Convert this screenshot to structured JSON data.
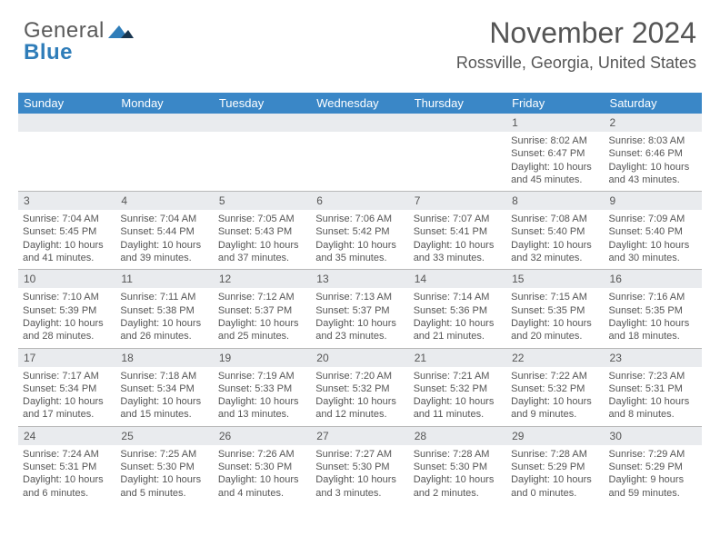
{
  "logo": {
    "general": "General",
    "blue": "Blue"
  },
  "header": {
    "month_title": "November 2024",
    "location": "Rossville, Georgia, United States"
  },
  "colors": {
    "brand_blue": "#2f7db9",
    "header_bg": "#3a87c7",
    "daynum_bg": "#e9ebee",
    "divider": "#b8b8b8",
    "text": "#555555"
  },
  "days_of_week": [
    "Sunday",
    "Monday",
    "Tuesday",
    "Wednesday",
    "Thursday",
    "Friday",
    "Saturday"
  ],
  "weeks": [
    [
      {
        "n": "",
        "lines": []
      },
      {
        "n": "",
        "lines": []
      },
      {
        "n": "",
        "lines": []
      },
      {
        "n": "",
        "lines": []
      },
      {
        "n": "",
        "lines": []
      },
      {
        "n": "1",
        "lines": [
          "Sunrise: 8:02 AM",
          "Sunset: 6:47 PM",
          "Daylight: 10 hours and 45 minutes."
        ]
      },
      {
        "n": "2",
        "lines": [
          "Sunrise: 8:03 AM",
          "Sunset: 6:46 PM",
          "Daylight: 10 hours and 43 minutes."
        ]
      }
    ],
    [
      {
        "n": "3",
        "lines": [
          "Sunrise: 7:04 AM",
          "Sunset: 5:45 PM",
          "Daylight: 10 hours and 41 minutes."
        ]
      },
      {
        "n": "4",
        "lines": [
          "Sunrise: 7:04 AM",
          "Sunset: 5:44 PM",
          "Daylight: 10 hours and 39 minutes."
        ]
      },
      {
        "n": "5",
        "lines": [
          "Sunrise: 7:05 AM",
          "Sunset: 5:43 PM",
          "Daylight: 10 hours and 37 minutes."
        ]
      },
      {
        "n": "6",
        "lines": [
          "Sunrise: 7:06 AM",
          "Sunset: 5:42 PM",
          "Daylight: 10 hours and 35 minutes."
        ]
      },
      {
        "n": "7",
        "lines": [
          "Sunrise: 7:07 AM",
          "Sunset: 5:41 PM",
          "Daylight: 10 hours and 33 minutes."
        ]
      },
      {
        "n": "8",
        "lines": [
          "Sunrise: 7:08 AM",
          "Sunset: 5:40 PM",
          "Daylight: 10 hours and 32 minutes."
        ]
      },
      {
        "n": "9",
        "lines": [
          "Sunrise: 7:09 AM",
          "Sunset: 5:40 PM",
          "Daylight: 10 hours and 30 minutes."
        ]
      }
    ],
    [
      {
        "n": "10",
        "lines": [
          "Sunrise: 7:10 AM",
          "Sunset: 5:39 PM",
          "Daylight: 10 hours and 28 minutes."
        ]
      },
      {
        "n": "11",
        "lines": [
          "Sunrise: 7:11 AM",
          "Sunset: 5:38 PM",
          "Daylight: 10 hours and 26 minutes."
        ]
      },
      {
        "n": "12",
        "lines": [
          "Sunrise: 7:12 AM",
          "Sunset: 5:37 PM",
          "Daylight: 10 hours and 25 minutes."
        ]
      },
      {
        "n": "13",
        "lines": [
          "Sunrise: 7:13 AM",
          "Sunset: 5:37 PM",
          "Daylight: 10 hours and 23 minutes."
        ]
      },
      {
        "n": "14",
        "lines": [
          "Sunrise: 7:14 AM",
          "Sunset: 5:36 PM",
          "Daylight: 10 hours and 21 minutes."
        ]
      },
      {
        "n": "15",
        "lines": [
          "Sunrise: 7:15 AM",
          "Sunset: 5:35 PM",
          "Daylight: 10 hours and 20 minutes."
        ]
      },
      {
        "n": "16",
        "lines": [
          "Sunrise: 7:16 AM",
          "Sunset: 5:35 PM",
          "Daylight: 10 hours and 18 minutes."
        ]
      }
    ],
    [
      {
        "n": "17",
        "lines": [
          "Sunrise: 7:17 AM",
          "Sunset: 5:34 PM",
          "Daylight: 10 hours and 17 minutes."
        ]
      },
      {
        "n": "18",
        "lines": [
          "Sunrise: 7:18 AM",
          "Sunset: 5:34 PM",
          "Daylight: 10 hours and 15 minutes."
        ]
      },
      {
        "n": "19",
        "lines": [
          "Sunrise: 7:19 AM",
          "Sunset: 5:33 PM",
          "Daylight: 10 hours and 13 minutes."
        ]
      },
      {
        "n": "20",
        "lines": [
          "Sunrise: 7:20 AM",
          "Sunset: 5:32 PM",
          "Daylight: 10 hours and 12 minutes."
        ]
      },
      {
        "n": "21",
        "lines": [
          "Sunrise: 7:21 AM",
          "Sunset: 5:32 PM",
          "Daylight: 10 hours and 11 minutes."
        ]
      },
      {
        "n": "22",
        "lines": [
          "Sunrise: 7:22 AM",
          "Sunset: 5:32 PM",
          "Daylight: 10 hours and 9 minutes."
        ]
      },
      {
        "n": "23",
        "lines": [
          "Sunrise: 7:23 AM",
          "Sunset: 5:31 PM",
          "Daylight: 10 hours and 8 minutes."
        ]
      }
    ],
    [
      {
        "n": "24",
        "lines": [
          "Sunrise: 7:24 AM",
          "Sunset: 5:31 PM",
          "Daylight: 10 hours and 6 minutes."
        ]
      },
      {
        "n": "25",
        "lines": [
          "Sunrise: 7:25 AM",
          "Sunset: 5:30 PM",
          "Daylight: 10 hours and 5 minutes."
        ]
      },
      {
        "n": "26",
        "lines": [
          "Sunrise: 7:26 AM",
          "Sunset: 5:30 PM",
          "Daylight: 10 hours and 4 minutes."
        ]
      },
      {
        "n": "27",
        "lines": [
          "Sunrise: 7:27 AM",
          "Sunset: 5:30 PM",
          "Daylight: 10 hours and 3 minutes."
        ]
      },
      {
        "n": "28",
        "lines": [
          "Sunrise: 7:28 AM",
          "Sunset: 5:30 PM",
          "Daylight: 10 hours and 2 minutes."
        ]
      },
      {
        "n": "29",
        "lines": [
          "Sunrise: 7:28 AM",
          "Sunset: 5:29 PM",
          "Daylight: 10 hours and 0 minutes."
        ]
      },
      {
        "n": "30",
        "lines": [
          "Sunrise: 7:29 AM",
          "Sunset: 5:29 PM",
          "Daylight: 9 hours and 59 minutes."
        ]
      }
    ]
  ]
}
